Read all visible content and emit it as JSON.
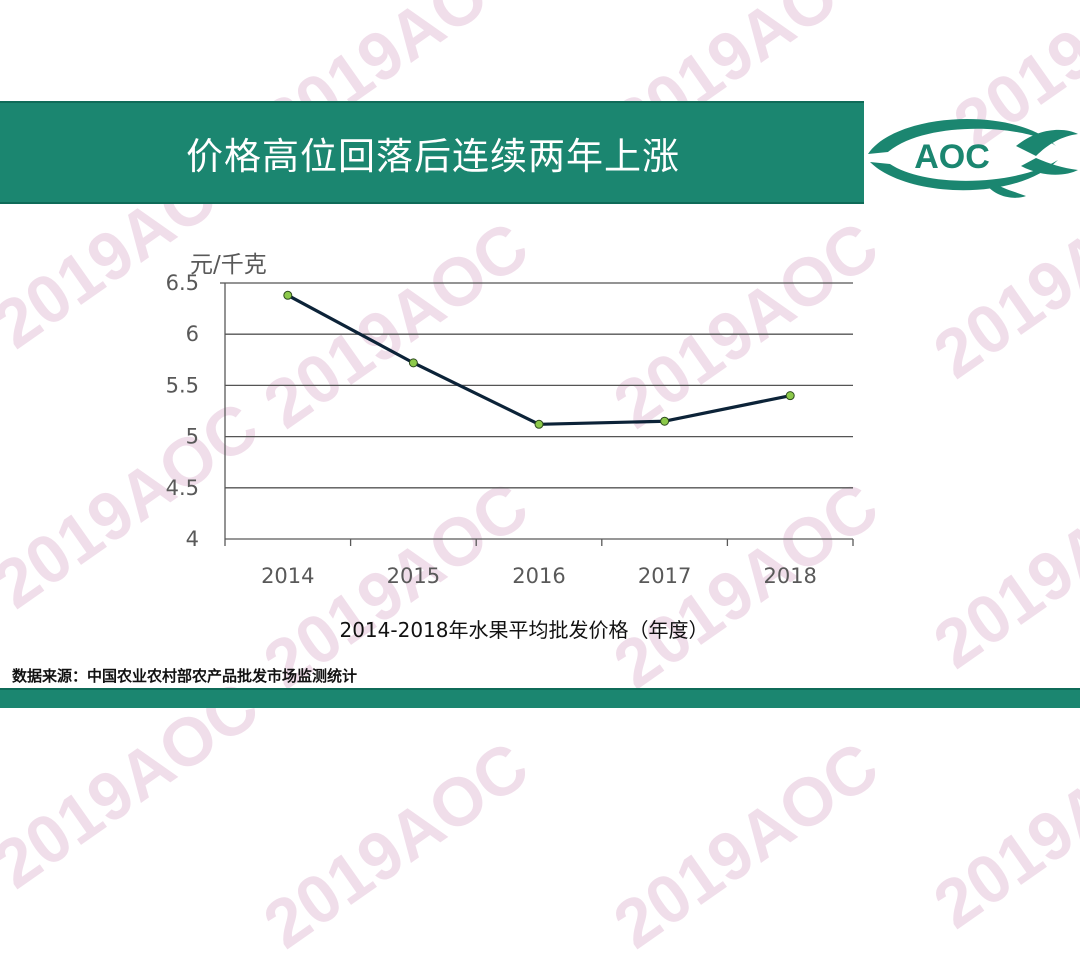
{
  "header": {
    "title": "价格高位回落后连续两年上涨"
  },
  "logo": {
    "text": "AOC",
    "color": "#1b8670"
  },
  "watermark": {
    "text": "2019AOC",
    "color": "#ecd3e4"
  },
  "chart_data": {
    "type": "line",
    "title": "2014-2018年水果平均批发价格（年度）",
    "ylabel": "元/千克",
    "xlabel": "",
    "categories": [
      "2014",
      "2015",
      "2016",
      "2017",
      "2018"
    ],
    "series": [
      {
        "values": [
          6.38,
          5.72,
          5.12,
          5.15,
          5.4
        ],
        "color": "#0c2338",
        "marker_color": "#8cc94a"
      }
    ],
    "ylim": [
      4,
      6.5
    ],
    "yticks": [
      "4",
      "4.5",
      "5",
      "5.5",
      "6",
      "6.5"
    ],
    "grid": true
  },
  "footer": {
    "source": "数据来源：中国农业农村部农产品批发市场监测统计"
  },
  "colors": {
    "accent": "#1b8670"
  }
}
